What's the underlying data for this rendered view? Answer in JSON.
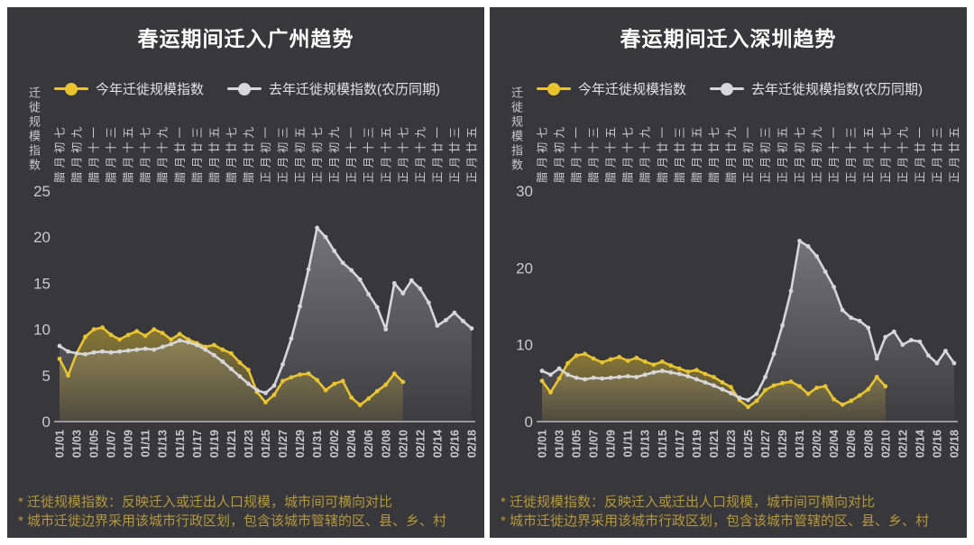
{
  "colors": {
    "panel_bg": "#37373c",
    "title_text": "#ffffff",
    "axis_text": "#c9c9ce",
    "axis_line": "#97979d",
    "this_year": "#e9c42f",
    "last_year": "#d7d7da",
    "footnote_text": "#b69839"
  },
  "footnotes": [
    "* 迁徙规模指数：反映迁入或迁出人口规模，城市间可横向对比",
    "* 城市迁徙边界采用该城市行政区划，包含该城市管辖的区、县、乡、村"
  ],
  "chart_data": [
    {
      "type": "line",
      "title": "春运期间迁入广州趋势",
      "ylabel": "迁徙规模指数",
      "ylim": [
        0,
        25
      ],
      "yticks": [
        0,
        5,
        10,
        15,
        20,
        25
      ],
      "grid": false,
      "legend_position": "top",
      "x_label_step": 2,
      "x_dates": [
        "01/01",
        "01/03",
        "01/05",
        "01/07",
        "01/09",
        "01/11",
        "01/13",
        "01/15",
        "01/17",
        "01/19",
        "01/21",
        "01/23",
        "01/25",
        "01/27",
        "01/29",
        "01/31",
        "02/02",
        "02/04",
        "02/06",
        "02/08",
        "02/10",
        "02/12",
        "02/14",
        "02/16",
        "02/18"
      ],
      "x_lunar": [
        "腊月初七",
        "腊月初九",
        "腊月十一",
        "腊月十三",
        "腊月十五",
        "腊月十七",
        "腊月十九",
        "腊月廿一",
        "腊月廿三",
        "腊月廿五",
        "腊月廿七",
        "腊月廿九",
        "正月初一",
        "正月初三",
        "正月初五",
        "正月初七",
        "正月初九",
        "正月十一",
        "正月十三",
        "正月十五",
        "正月十七",
        "正月十九",
        "正月廿一",
        "正月廿三",
        "正月廿五"
      ],
      "series": [
        {
          "name": "今年迁徙规模指数",
          "color": "#e9c42f",
          "values": [
            6.8,
            5.0,
            7.4,
            9.2,
            10.0,
            10.2,
            9.4,
            8.9,
            9.4,
            9.8,
            9.3,
            10.0,
            9.6,
            8.9,
            9.5,
            8.9,
            8.5,
            8.1,
            8.3,
            7.8,
            7.4,
            6.4,
            5.6,
            3.2,
            2.1,
            2.9,
            4.4,
            4.8,
            5.1,
            5.2,
            4.5,
            3.4,
            4.1,
            4.4,
            2.6,
            1.8,
            2.5,
            3.3,
            4.0,
            5.2,
            4.3
          ]
        },
        {
          "name": "去年迁徙规模指数(农历同期)",
          "color": "#d7d7da",
          "values": [
            8.2,
            7.6,
            7.4,
            7.3,
            7.5,
            7.6,
            7.5,
            7.6,
            7.7,
            7.8,
            7.9,
            7.8,
            8.1,
            8.4,
            8.8,
            8.6,
            8.3,
            7.8,
            7.2,
            6.5,
            5.7,
            4.9,
            4.1,
            3.4,
            3.1,
            3.9,
            6.2,
            9.0,
            12.5,
            16.5,
            21.0,
            20.0,
            18.5,
            17.2,
            16.4,
            15.4,
            13.8,
            12.4,
            10.0,
            15.0,
            13.9,
            15.3,
            14.4,
            12.9,
            10.4,
            11.0,
            11.8,
            10.9,
            10.1
          ]
        }
      ]
    },
    {
      "type": "line",
      "title": "春运期间迁入深圳趋势",
      "ylabel": "迁徙规模指数",
      "ylim": [
        0,
        30
      ],
      "yticks": [
        0,
        10,
        20,
        30
      ],
      "grid": false,
      "legend_position": "top",
      "x_label_step": 2,
      "x_dates": [
        "01/01",
        "01/03",
        "01/05",
        "01/07",
        "01/09",
        "01/11",
        "01/13",
        "01/15",
        "01/17",
        "01/19",
        "01/21",
        "01/23",
        "01/25",
        "01/27",
        "01/29",
        "01/31",
        "02/02",
        "02/04",
        "02/06",
        "02/08",
        "02/10",
        "02/12",
        "02/14",
        "02/16",
        "02/18"
      ],
      "x_lunar": [
        "腊月初七",
        "腊月初九",
        "腊月十一",
        "腊月十三",
        "腊月十五",
        "腊月十七",
        "腊月十九",
        "腊月廿一",
        "腊月廿三",
        "腊月廿五",
        "腊月廿七",
        "腊月廿九",
        "正月初一",
        "正月初三",
        "正月初五",
        "正月初七",
        "正月初九",
        "正月十一",
        "正月十三",
        "正月十五",
        "正月十七",
        "正月十九",
        "正月廿一",
        "正月廿三",
        "正月廿五"
      ],
      "series": [
        {
          "name": "今年迁徙规模指数",
          "color": "#e9c42f",
          "values": [
            5.3,
            3.8,
            5.6,
            7.6,
            8.6,
            8.8,
            8.2,
            7.7,
            8.1,
            8.4,
            7.9,
            8.3,
            7.8,
            7.4,
            7.8,
            7.3,
            6.9,
            6.5,
            6.7,
            6.2,
            5.8,
            5.1,
            4.5,
            2.8,
            1.9,
            2.7,
            4.1,
            4.7,
            5.0,
            5.2,
            4.6,
            3.6,
            4.4,
            4.6,
            2.9,
            2.2,
            2.7,
            3.4,
            4.2,
            5.8,
            4.6
          ]
        },
        {
          "name": "去年迁徙规模指数(农历同期)",
          "color": "#d7d7da",
          "values": [
            6.6,
            6.1,
            6.9,
            6.1,
            5.7,
            5.5,
            5.7,
            5.6,
            5.7,
            5.8,
            5.9,
            5.8,
            6.1,
            6.4,
            6.6,
            6.4,
            6.2,
            5.9,
            5.5,
            5.1,
            4.7,
            4.2,
            3.7,
            3.1,
            2.8,
            3.6,
            5.8,
            8.8,
            12.5,
            17.0,
            23.5,
            22.8,
            21.5,
            19.5,
            17.5,
            14.5,
            13.5,
            13.1,
            12.2,
            8.2,
            11.0,
            11.7,
            10.0,
            10.6,
            10.4,
            8.6,
            7.6,
            9.2,
            7.6
          ]
        }
      ]
    }
  ]
}
